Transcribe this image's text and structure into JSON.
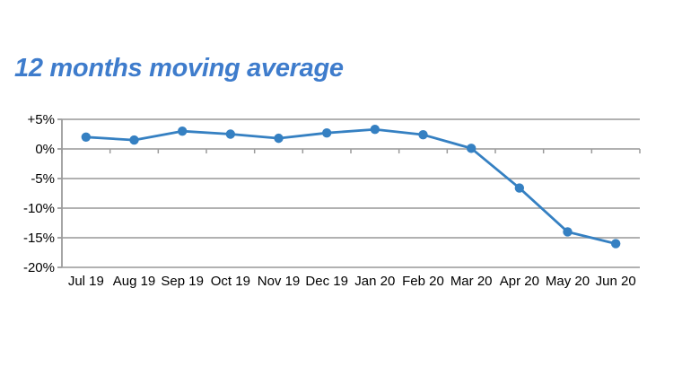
{
  "title": {
    "text": "12 months moving average",
    "color": "#3E7CCC"
  },
  "chart_data": {
    "type": "line",
    "title": "12 months moving average",
    "categories": [
      "Jul 19",
      "Aug 19",
      "Sep 19",
      "Oct 19",
      "Nov 19",
      "Dec 19",
      "Jan 20",
      "Feb 20",
      "Mar 20",
      "Apr 20",
      "May 20",
      "Jun 20"
    ],
    "series": [
      {
        "name": "12 months moving average",
        "values": [
          2.0,
          1.5,
          3.0,
          2.5,
          1.8,
          2.7,
          3.3,
          2.4,
          0.1,
          -6.6,
          -14.0,
          -16.0
        ]
      }
    ],
    "xlabel": "",
    "ylabel": "",
    "ylim": [
      -20,
      5
    ],
    "yticks": [
      {
        "value": 5,
        "label": "+5%"
      },
      {
        "value": 0,
        "label": "0%"
      },
      {
        "value": -5,
        "label": "-5%"
      },
      {
        "value": -10,
        "label": "-10%"
      },
      {
        "value": -15,
        "label": "-15%"
      },
      {
        "value": -20,
        "label": "-20%"
      }
    ],
    "grid": true,
    "legend_position": "none",
    "line_color": "#3580C2",
    "marker_color": "#3580C2",
    "grid_color": "#A6A6A6",
    "axis_color": "#9B9B9B",
    "axis_text_color": "#000000"
  }
}
